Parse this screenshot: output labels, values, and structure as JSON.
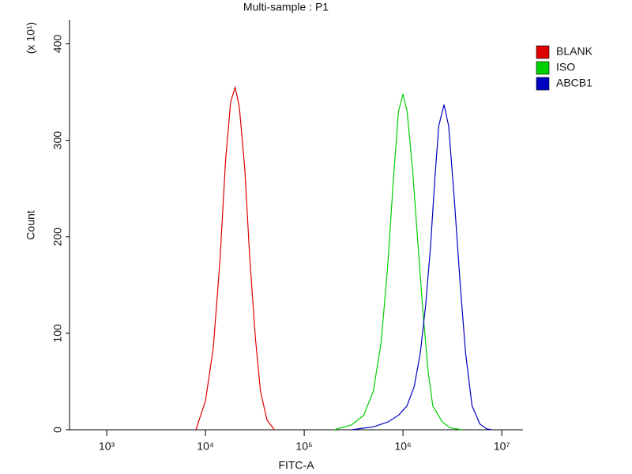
{
  "chart_data": {
    "type": "line",
    "title": "Multi-sample : P1",
    "x_label": "FITC-A",
    "y_label": "Count",
    "y_multiplier": "(x 10¹)",
    "xscale": "log",
    "xlim": [
      420,
      16400000
    ],
    "ylim": [
      0,
      425
    ],
    "xticks": [
      {
        "value": 1000,
        "label": "10³"
      },
      {
        "value": 10000,
        "label": "10⁴"
      },
      {
        "value": 100000,
        "label": "10⁵"
      },
      {
        "value": 1000000,
        "label": "10⁶"
      },
      {
        "value": 10000000,
        "label": "10⁷"
      }
    ],
    "yticks": [
      0,
      100,
      200,
      300,
      400
    ],
    "grid": false,
    "legend": "right",
    "series": [
      {
        "name": "BLANK",
        "color": "#e00000",
        "x": [
          8000,
          10000,
          12000,
          14000,
          16000,
          18000,
          20000,
          22000,
          25000,
          28000,
          32000,
          36000,
          42000,
          50000
        ],
        "values": [
          0,
          30,
          85,
          175,
          280,
          340,
          355,
          335,
          270,
          180,
          95,
          40,
          10,
          0
        ]
      },
      {
        "name": "ISO",
        "color": "#00d000",
        "x": [
          200000,
          300000,
          400000,
          500000,
          600000,
          700000,
          800000,
          900000,
          1000000,
          1100000,
          1250000,
          1400000,
          1600000,
          1800000,
          2000000,
          2500000,
          3000000,
          4000000
        ],
        "values": [
          0,
          5,
          15,
          40,
          90,
          170,
          260,
          330,
          348,
          330,
          270,
          200,
          120,
          60,
          25,
          8,
          2,
          0
        ]
      },
      {
        "name": "ABCB1",
        "color": "#0000c0",
        "x": [
          300000,
          500000,
          700000,
          900000,
          1100000,
          1300000,
          1500000,
          1700000,
          1900000,
          2100000,
          2300000,
          2600000,
          2900000,
          3300000,
          3800000,
          4300000,
          5000000,
          6000000,
          7000000,
          8000000
        ],
        "values": [
          0,
          3,
          8,
          15,
          25,
          45,
          80,
          130,
          190,
          260,
          315,
          337,
          315,
          240,
          150,
          80,
          25,
          6,
          1,
          0
        ]
      }
    ]
  }
}
